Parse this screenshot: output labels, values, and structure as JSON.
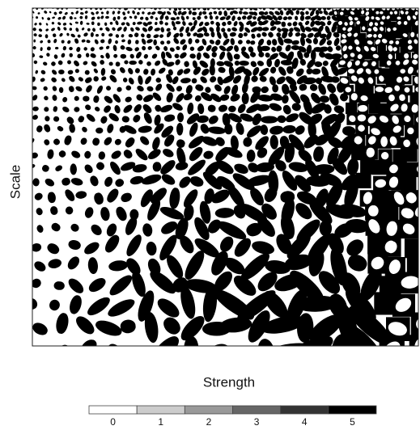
{
  "chart_data": {
    "type": "pattern",
    "x_label": "Strength",
    "y_label": "Scale",
    "colorbar": {
      "ticks": [
        0,
        1,
        2,
        3,
        4,
        5
      ],
      "colors": [
        "#ffffff",
        "#cccccc",
        "#999999",
        "#666666",
        "#333333",
        "#000000"
      ]
    }
  }
}
